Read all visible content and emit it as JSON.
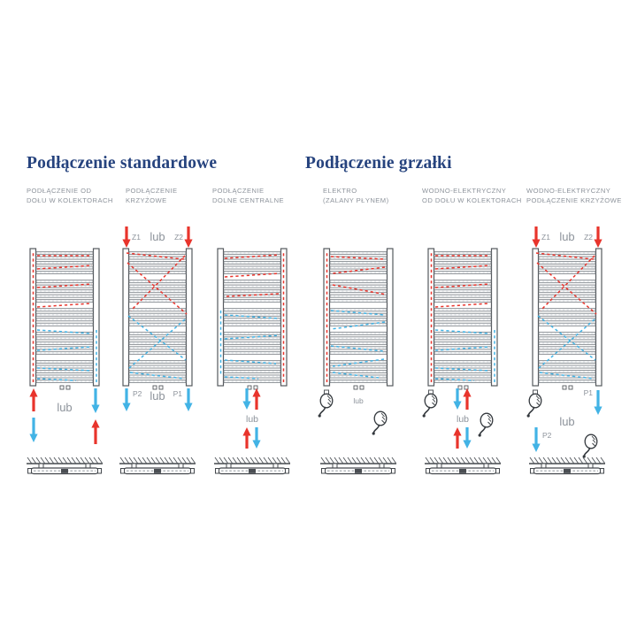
{
  "sections": [
    {
      "heading": "Podłączenie standardowe"
    },
    {
      "heading": "Podłączenie grzałki"
    }
  ],
  "colors": {
    "heading": "#26437e",
    "label": "#8d939b",
    "or_word": "#8d939b",
    "red": "#e8342c",
    "blue": "#42b3e5",
    "line": "#55595e"
  },
  "diagrams": [
    {
      "label": "PODŁĄCZENIE OD\nDOŁU W KOLEKTORACH",
      "flow": "collectors-bottom",
      "top": null,
      "bottom": {
        "type": "dual-sides",
        "or_word": "lub"
      },
      "heaters": []
    },
    {
      "label": "PODŁĄCZENIE\nKRZYŻOWE",
      "flow": "cross",
      "top": {
        "type": "z-feeds",
        "left_label": "Z1",
        "right_label": "Z2",
        "or_word": "lub"
      },
      "bottom": {
        "type": "p-returns",
        "left_label": "P2",
        "right_label": "P1",
        "or_word": "lub"
      },
      "heaters": []
    },
    {
      "label": "PODŁĄCZENIE\nDOLNE CENTRALNE",
      "flow": "center-bottom",
      "top": null,
      "bottom": {
        "type": "center-pairs",
        "or_word": "lub"
      },
      "heaters": []
    },
    {
      "label": "ELEKTRO\n(ZALANY PŁYNEM)",
      "flow": "electro",
      "top": null,
      "bottom": {
        "type": "heaters-or",
        "or_word": "lub"
      },
      "heaters": [
        "bottom-left",
        "bottom-right"
      ]
    },
    {
      "label": "WODNO-ELEKTRYCZNY\nOD DOŁU W KOLEKTORACH",
      "flow": "collectors-bottom",
      "top": null,
      "bottom": {
        "type": "center-pairs",
        "or_word": "lub"
      },
      "heaters": [
        "bottom-left",
        "bottom-right"
      ]
    },
    {
      "label": "WODNO-ELEKTRYCZNY\nPODŁĄCZENIE KRZYŻOWE",
      "flow": "cross",
      "top": {
        "type": "z-feeds",
        "left_label": "Z1",
        "right_label": "Z2",
        "or_word": "lub"
      },
      "bottom": {
        "type": "p-split-heaters",
        "left_label": "P2",
        "right_label": "P1",
        "or_word": "lub"
      },
      "heaters": [
        "bottom-left",
        "bottom-right"
      ]
    }
  ]
}
